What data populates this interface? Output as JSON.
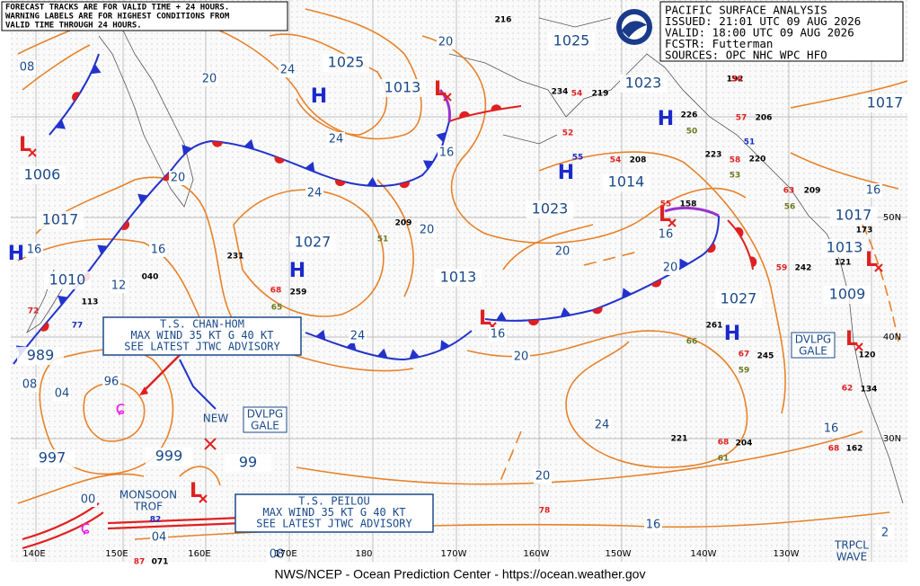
{
  "notes": [
    "FORECAST TRACKS ARE FOR VALID TIME + 24 HOURS.",
    "WARNING LABELS ARE FOR HIGHEST CONDITIONS FROM",
    "VALID TIME THROUGH 24 HOURS."
  ],
  "header": [
    "PACIFIC SURFACE ANALYSIS",
    "ISSUED: 21:01 UTC 09 AUG 2026",
    "VALID:  18:00 UTC 09 AUG 2026",
    "FCSTR:  Futterman",
    "SOURCES: OPC NHC WPC HFO"
  ],
  "pressure_labels": [
    "1025",
    "1013",
    "1006",
    "1017",
    "1010",
    "989",
    "997",
    "999",
    "1027",
    "1023",
    "1014",
    "1013",
    "1023",
    "1025",
    "1017",
    "1017",
    "1013",
    "1009",
    "1027",
    "99"
  ],
  "centers": [
    "H",
    "H",
    "H",
    "H",
    "H",
    "H",
    "L",
    "L",
    "L",
    "L",
    "L",
    "L",
    "L"
  ],
  "isobar_labels": [
    "08",
    "20",
    "24",
    "24",
    "20",
    "16",
    "24",
    "12",
    "16",
    "08",
    "04",
    "96",
    "20",
    "16",
    "20",
    "20",
    "16",
    "20",
    "16",
    "24",
    "20",
    "24",
    "20",
    "16",
    "16",
    "16",
    "00",
    "04",
    "08",
    "2"
  ],
  "warnings": [
    {
      "lines": [
        "DVLPG",
        "GALE"
      ]
    },
    {
      "lines": [
        "DVLPG",
        "GALE"
      ]
    },
    {
      "lines": [
        "NEW"
      ]
    }
  ],
  "storms": [
    {
      "lines": [
        "T.S. CHAN-HOM",
        "MAX WIND 35 KT G 40 KT",
        "SEE LATEST JTWC ADVISORY"
      ]
    },
    {
      "lines": [
        "T.S. PEILOU",
        "MAX WIND 35 KT G 40 KT",
        "SEE LATEST JTWC ADVISORY"
      ]
    }
  ],
  "features": [
    {
      "lines": [
        "MONSOON",
        "TROF"
      ]
    },
    {
      "lines": [
        "TRPCL",
        "WAVE"
      ]
    }
  ],
  "longitudes": [
    "140E",
    "150E",
    "160E",
    "170E",
    "180",
    "170W",
    "160W",
    "150W",
    "140W",
    "130W"
  ],
  "latitudes": [
    "50N",
    "40N",
    "30N"
  ],
  "stations": [
    "216",
    "234",
    "219",
    "54",
    "52",
    "55",
    "54",
    "208",
    "226",
    "192",
    "56",
    "206",
    "57",
    "51",
    "50",
    "223",
    "220",
    "58",
    "53",
    "209",
    "63",
    "56",
    "158",
    "55",
    "209",
    "51",
    "231",
    "259",
    "68",
    "65",
    "040",
    "113",
    "77",
    "72",
    "261",
    "66",
    "245",
    "67",
    "59",
    "242",
    "59",
    "221",
    "204",
    "68",
    "61",
    "162",
    "68",
    "134",
    "62",
    "120",
    "173",
    "121",
    "071",
    "87",
    "82",
    "78"
  ],
  "footer": "NWS/NCEP - Ocean Prediction Center - https://ocean.weather.gov"
}
